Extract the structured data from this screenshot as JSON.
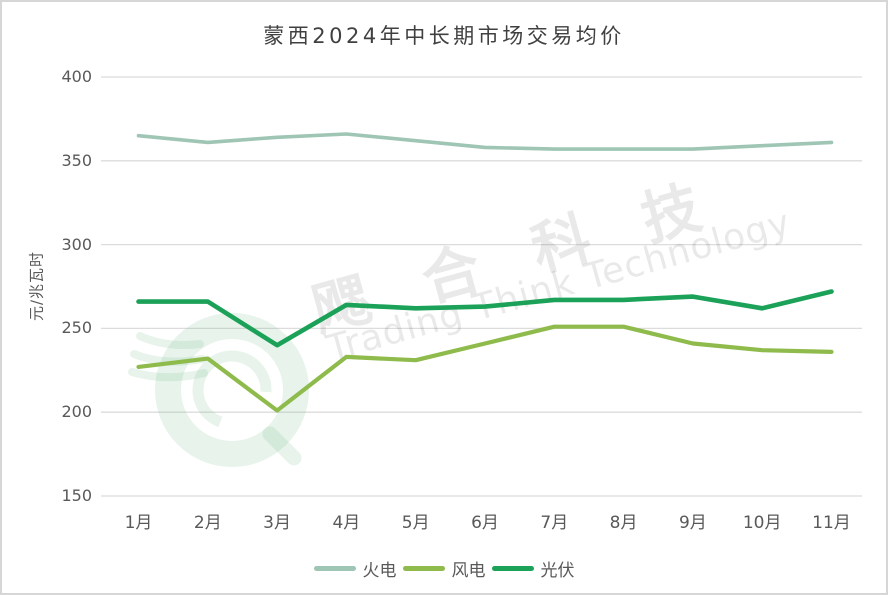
{
  "chart": {
    "title": "蒙西2024年中长期市场交易均价",
    "ylabel": "元/兆瓦时"
  },
  "watermark": {
    "chinese": "飔合科技",
    "english": "Trading Think Technology"
  },
  "colors": {
    "grid": "#dcdcdc",
    "axis_text": "#595959",
    "title_text": "#404040",
    "thermal": "#9fc5b5",
    "wind": "#8ebb4b",
    "solar": "#1ba158",
    "watermark_green": "rgba(103,178,128,0.16)"
  },
  "chart_data": {
    "type": "line",
    "title": "蒙西2024年中长期市场交易均价",
    "xlabel": "",
    "ylabel": "元/兆瓦时",
    "categories": [
      "1月",
      "2月",
      "3月",
      "4月",
      "5月",
      "6月",
      "7月",
      "8月",
      "9月",
      "10月",
      "11月"
    ],
    "series": [
      {
        "name": "火电",
        "color": "#9fc5b5",
        "values": [
          365,
          361,
          364,
          366,
          362,
          358,
          357,
          357,
          357,
          359,
          361
        ]
      },
      {
        "name": "风电",
        "color": "#8ebb4b",
        "values": [
          227,
          232,
          201,
          233,
          231,
          241,
          251,
          251,
          241,
          237,
          236
        ]
      },
      {
        "name": "光伏",
        "color": "#1ba158",
        "values": [
          266,
          266,
          240,
          264,
          262,
          263,
          267,
          267,
          269,
          262,
          272
        ]
      }
    ],
    "y_ticks": [
      400,
      350,
      300,
      250,
      200,
      150
    ],
    "ylim": [
      150,
      400
    ],
    "grid": true,
    "legend_position": "bottom"
  }
}
